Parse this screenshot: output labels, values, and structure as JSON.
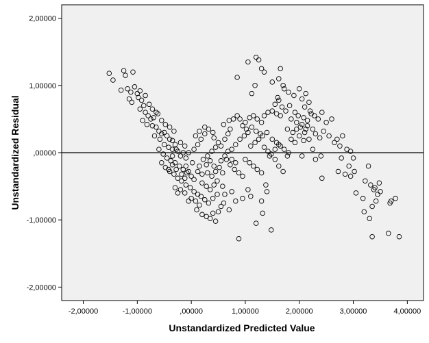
{
  "chart_data": {
    "type": "scatter",
    "title": "",
    "xlabel": "Unstandardized Predicted Value",
    "ylabel": "Unstandardized Residual",
    "xlim": [
      -2.4,
      4.3
    ],
    "ylim": [
      -2.2,
      2.2
    ],
    "x_ticks": [
      -2,
      -1,
      0,
      1,
      2,
      3,
      4
    ],
    "y_ticks": [
      -2,
      -1,
      0,
      1,
      2
    ],
    "x_tick_labels": [
      "-2,00000",
      "-1,00000",
      ",00000",
      "1,00000",
      "2,00000",
      "3,00000",
      "4,00000"
    ],
    "y_tick_labels": [
      "-2,00000",
      "-1,00000",
      ",00000",
      "1,00000",
      "2,00000"
    ],
    "reference_line": {
      "y": 0
    },
    "grid": false,
    "marker": "open-circle",
    "colors": {
      "background": "#f0f0f0",
      "marker": "#000000",
      "line": "#000000"
    },
    "points": [
      [
        -1.52,
        1.18
      ],
      [
        -1.45,
        1.08
      ],
      [
        -1.25,
        1.22
      ],
      [
        -1.22,
        1.15
      ],
      [
        -1.08,
        1.2
      ],
      [
        -1.3,
        0.93
      ],
      [
        -1.18,
        0.95
      ],
      [
        -1.12,
        0.9
      ],
      [
        -1.05,
        0.98
      ],
      [
        -1.0,
        0.88
      ],
      [
        -1.15,
        0.8
      ],
      [
        -1.1,
        0.75
      ],
      [
        -0.98,
        0.82
      ],
      [
        -0.92,
        0.78
      ],
      [
        -0.88,
        0.7
      ],
      [
        -0.95,
        0.65
      ],
      [
        -0.85,
        0.6
      ],
      [
        -0.8,
        0.55
      ],
      [
        -0.75,
        0.5
      ],
      [
        -0.7,
        0.52
      ],
      [
        -0.9,
        0.48
      ],
      [
        -0.82,
        0.42
      ],
      [
        -0.72,
        0.4
      ],
      [
        -0.65,
        0.38
      ],
      [
        -0.6,
        0.32
      ],
      [
        -0.55,
        0.28
      ],
      [
        -0.5,
        0.3
      ],
      [
        -0.45,
        0.25
      ],
      [
        -0.4,
        0.2
      ],
      [
        -0.35,
        0.18
      ],
      [
        -0.68,
        0.25
      ],
      [
        -0.58,
        0.2
      ],
      [
        -0.5,
        0.12
      ],
      [
        -0.42,
        0.08
      ],
      [
        -0.35,
        0.05
      ],
      [
        -0.3,
        0.12
      ],
      [
        -0.25,
        0.02
      ],
      [
        -0.2,
        -0.05
      ],
      [
        -0.15,
        0.0
      ],
      [
        -0.1,
        -0.08
      ],
      [
        -0.6,
        0.05
      ],
      [
        -0.52,
        -0.02
      ],
      [
        -0.45,
        -0.08
      ],
      [
        -0.38,
        -0.12
      ],
      [
        -0.3,
        -0.15
      ],
      [
        -0.22,
        -0.2
      ],
      [
        -0.15,
        -0.25
      ],
      [
        -0.08,
        -0.3
      ],
      [
        0.0,
        -0.35
      ],
      [
        0.05,
        -0.4
      ],
      [
        -0.55,
        -0.15
      ],
      [
        -0.48,
        -0.22
      ],
      [
        -0.4,
        -0.28
      ],
      [
        -0.32,
        -0.32
      ],
      [
        -0.25,
        -0.38
      ],
      [
        -0.18,
        -0.42
      ],
      [
        -0.1,
        -0.48
      ],
      [
        -0.02,
        -0.52
      ],
      [
        0.05,
        -0.58
      ],
      [
        0.12,
        -0.62
      ],
      [
        -0.2,
        -0.55
      ],
      [
        -0.12,
        -0.6
      ],
      [
        0.0,
        -0.68
      ],
      [
        0.08,
        -0.72
      ],
      [
        0.15,
        -0.78
      ],
      [
        -0.05,
        -0.72
      ],
      [
        0.1,
        -0.85
      ],
      [
        0.2,
        -0.92
      ],
      [
        0.28,
        -0.95
      ],
      [
        0.35,
        -0.98
      ],
      [
        0.4,
        -0.9
      ],
      [
        0.45,
        -1.02
      ],
      [
        0.5,
        -0.88
      ],
      [
        0.55,
        -0.8
      ],
      [
        0.6,
        -0.75
      ],
      [
        0.2,
        -0.45
      ],
      [
        0.28,
        -0.5
      ],
      [
        0.35,
        -0.55
      ],
      [
        0.42,
        -0.48
      ],
      [
        0.48,
        -0.42
      ],
      [
        0.3,
        -0.3
      ],
      [
        0.38,
        -0.35
      ],
      [
        0.45,
        -0.28
      ],
      [
        0.52,
        -0.22
      ],
      [
        0.58,
        -0.3
      ],
      [
        0.15,
        -0.2
      ],
      [
        0.22,
        -0.1
      ],
      [
        0.3,
        -0.05
      ],
      [
        0.38,
        0.02
      ],
      [
        0.45,
        0.08
      ],
      [
        0.5,
        0.15
      ],
      [
        0.55,
        0.1
      ],
      [
        0.62,
        0.2
      ],
      [
        0.68,
        0.28
      ],
      [
        0.72,
        0.35
      ],
      [
        0.6,
        0.42
      ],
      [
        0.7,
        0.48
      ],
      [
        0.78,
        0.5
      ],
      [
        0.85,
        0.55
      ],
      [
        0.9,
        0.5
      ],
      [
        0.65,
        -0.1
      ],
      [
        0.72,
        -0.18
      ],
      [
        0.8,
        -0.25
      ],
      [
        0.88,
        -0.3
      ],
      [
        0.95,
        -0.35
      ],
      [
        0.75,
        0.05
      ],
      [
        0.82,
        0.12
      ],
      [
        0.9,
        0.2
      ],
      [
        0.98,
        0.25
      ],
      [
        1.05,
        0.3
      ],
      [
        1.0,
        0.45
      ],
      [
        1.08,
        0.52
      ],
      [
        1.15,
        0.55
      ],
      [
        1.22,
        0.5
      ],
      [
        1.3,
        0.45
      ],
      [
        1.0,
        -0.1
      ],
      [
        1.08,
        -0.15
      ],
      [
        1.15,
        -0.2
      ],
      [
        1.22,
        -0.25
      ],
      [
        1.3,
        -0.3
      ],
      [
        1.1,
        0.1
      ],
      [
        1.18,
        0.15
      ],
      [
        1.25,
        0.2
      ],
      [
        1.32,
        0.25
      ],
      [
        1.4,
        0.3
      ],
      [
        1.35,
        0.55
      ],
      [
        1.42,
        0.6
      ],
      [
        1.5,
        0.62
      ],
      [
        1.58,
        0.58
      ],
      [
        1.65,
        0.55
      ],
      [
        1.5,
        0.2
      ],
      [
        1.58,
        0.15
      ],
      [
        1.65,
        0.1
      ],
      [
        1.72,
        0.05
      ],
      [
        1.8,
        0.0
      ],
      [
        1.45,
        -0.05
      ],
      [
        1.55,
        -0.1
      ],
      [
        1.62,
        -0.2
      ],
      [
        1.7,
        -0.28
      ],
      [
        1.78,
        -0.05
      ],
      [
        1.2,
        1.42
      ],
      [
        1.25,
        1.38
      ],
      [
        1.05,
        1.35
      ],
      [
        1.3,
        1.25
      ],
      [
        1.35,
        1.2
      ],
      [
        0.85,
        1.12
      ],
      [
        1.18,
        1.0
      ],
      [
        1.12,
        0.88
      ],
      [
        1.5,
        1.05
      ],
      [
        1.62,
        1.1
      ],
      [
        1.65,
        1.25
      ],
      [
        1.7,
        1.0
      ],
      [
        1.72,
        0.95
      ],
      [
        1.8,
        0.9
      ],
      [
        1.6,
        0.82
      ],
      [
        1.9,
        0.85
      ],
      [
        2.0,
        0.95
      ],
      [
        2.05,
        0.8
      ],
      [
        2.12,
        0.88
      ],
      [
        2.18,
        0.75
      ],
      [
        2.1,
        0.68
      ],
      [
        2.2,
        0.62
      ],
      [
        2.28,
        0.55
      ],
      [
        2.35,
        0.5
      ],
      [
        2.42,
        0.6
      ],
      [
        1.85,
        0.5
      ],
      [
        1.95,
        0.45
      ],
      [
        2.02,
        0.38
      ],
      [
        2.1,
        0.3
      ],
      [
        2.15,
        0.4
      ],
      [
        2.25,
        0.35
      ],
      [
        2.3,
        0.28
      ],
      [
        2.38,
        0.22
      ],
      [
        2.45,
        0.32
      ],
      [
        2.5,
        0.45
      ],
      [
        2.55,
        0.25
      ],
      [
        2.6,
        0.5
      ],
      [
        2.65,
        0.15
      ],
      [
        2.7,
        0.2
      ],
      [
        2.75,
        0.1
      ],
      [
        2.05,
        -0.05
      ],
      [
        2.25,
        0.05
      ],
      [
        2.3,
        -0.1
      ],
      [
        2.4,
        -0.05
      ],
      [
        2.42,
        -0.38
      ],
      [
        2.8,
        0.25
      ],
      [
        2.88,
        0.05
      ],
      [
        2.95,
        0.02
      ],
      [
        3.0,
        -0.08
      ],
      [
        2.92,
        -0.2
      ],
      [
        2.85,
        -0.32
      ],
      [
        2.95,
        -0.35
      ],
      [
        3.02,
        -0.28
      ],
      [
        2.72,
        -0.28
      ],
      [
        2.78,
        -0.08
      ],
      [
        3.05,
        -0.6
      ],
      [
        3.18,
        -0.68
      ],
      [
        3.22,
        -0.42
      ],
      [
        3.28,
        -0.2
      ],
      [
        3.32,
        -0.48
      ],
      [
        3.38,
        -0.55
      ],
      [
        3.42,
        -0.72
      ],
      [
        3.48,
        -0.45
      ],
      [
        3.35,
        -0.8
      ],
      [
        3.45,
        -0.62
      ],
      [
        3.2,
        -0.88
      ],
      [
        3.3,
        -0.98
      ],
      [
        3.35,
        -1.25
      ],
      [
        3.65,
        -1.2
      ],
      [
        3.85,
        -1.25
      ],
      [
        3.7,
        -0.72
      ],
      [
        3.78,
        -0.68
      ],
      [
        3.68,
        -0.75
      ],
      [
        3.4,
        -0.52
      ],
      [
        3.5,
        -0.58
      ],
      [
        0.88,
        -1.28
      ],
      [
        1.2,
        -1.05
      ],
      [
        1.48,
        -1.15
      ],
      [
        1.32,
        -0.9
      ],
      [
        1.38,
        -0.48
      ],
      [
        1.4,
        -0.58
      ],
      [
        1.3,
        -0.72
      ],
      [
        1.1,
        -0.65
      ],
      [
        1.05,
        -0.55
      ],
      [
        0.95,
        -0.68
      ],
      [
        0.82,
        -0.72
      ],
      [
        0.75,
        -0.58
      ],
      [
        0.7,
        -0.85
      ],
      [
        0.62,
        -0.62
      ],
      [
        0.58,
        -0.5
      ],
      [
        -0.25,
        -0.6
      ],
      [
        -0.3,
        -0.52
      ],
      [
        -0.12,
        -0.38
      ],
      [
        -0.05,
        -0.28
      ],
      [
        0.02,
        -0.15
      ],
      [
        -0.35,
        -0.05
      ],
      [
        -0.28,
        0.05
      ],
      [
        -0.2,
        0.15
      ],
      [
        -0.12,
        0.1
      ],
      [
        -0.05,
        0.0
      ],
      [
        0.05,
        0.05
      ],
      [
        0.12,
        0.12
      ],
      [
        0.18,
        0.2
      ],
      [
        0.25,
        0.28
      ],
      [
        0.32,
        0.35
      ],
      [
        0.4,
        0.3
      ],
      [
        0.42,
        0.22
      ],
      [
        0.25,
        0.38
      ],
      [
        0.15,
        0.32
      ],
      [
        0.08,
        0.25
      ],
      [
        -0.62,
        0.58
      ],
      [
        -0.55,
        0.48
      ],
      [
        -0.48,
        0.42
      ],
      [
        -0.4,
        0.38
      ],
      [
        -0.32,
        0.32
      ],
      [
        -0.78,
        0.72
      ],
      [
        -0.72,
        0.65
      ],
      [
        -0.65,
        0.6
      ],
      [
        -0.85,
        0.85
      ],
      [
        -0.95,
        0.92
      ],
      [
        1.55,
        0.72
      ],
      [
        1.62,
        0.78
      ],
      [
        1.68,
        0.68
      ],
      [
        1.75,
        0.62
      ],
      [
        1.82,
        0.7
      ],
      [
        1.92,
        0.6
      ],
      [
        1.98,
        0.55
      ],
      [
        2.08,
        0.52
      ],
      [
        2.15,
        0.48
      ],
      [
        2.22,
        0.58
      ],
      [
        0.95,
        0.4
      ],
      [
        1.02,
        0.35
      ],
      [
        1.12,
        0.38
      ],
      [
        1.2,
        0.32
      ],
      [
        1.28,
        0.28
      ],
      [
        0.55,
        -0.12
      ],
      [
        0.62,
        -0.05
      ],
      [
        0.68,
        0.02
      ],
      [
        0.75,
        -0.1
      ],
      [
        0.82,
        -0.15
      ],
      [
        1.35,
        0.08
      ],
      [
        1.42,
        0.02
      ],
      [
        1.48,
        -0.02
      ],
      [
        1.55,
        0.05
      ],
      [
        1.62,
        0.12
      ],
      [
        -0.42,
        -0.25
      ],
      [
        -0.35,
        -0.18
      ],
      [
        -0.28,
        -0.25
      ],
      [
        -0.18,
        -0.32
      ],
      [
        -0.1,
        -0.2
      ],
      [
        0.18,
        -0.65
      ],
      [
        0.25,
        -0.7
      ],
      [
        0.32,
        -0.75
      ],
      [
        0.4,
        -0.68
      ],
      [
        0.48,
        -0.62
      ],
      [
        0.12,
        -0.28
      ],
      [
        0.2,
        -0.32
      ],
      [
        0.28,
        -0.18
      ],
      [
        0.35,
        -0.12
      ],
      [
        0.42,
        -0.2
      ],
      [
        1.85,
        0.2
      ],
      [
        1.92,
        0.15
      ],
      [
        2.0,
        0.25
      ],
      [
        2.08,
        0.18
      ],
      [
        2.18,
        0.2
      ],
      [
        1.78,
        0.35
      ],
      [
        1.88,
        0.3
      ],
      [
        1.95,
        0.35
      ],
      [
        2.05,
        0.42
      ],
      [
        2.12,
        0.35
      ]
    ]
  }
}
